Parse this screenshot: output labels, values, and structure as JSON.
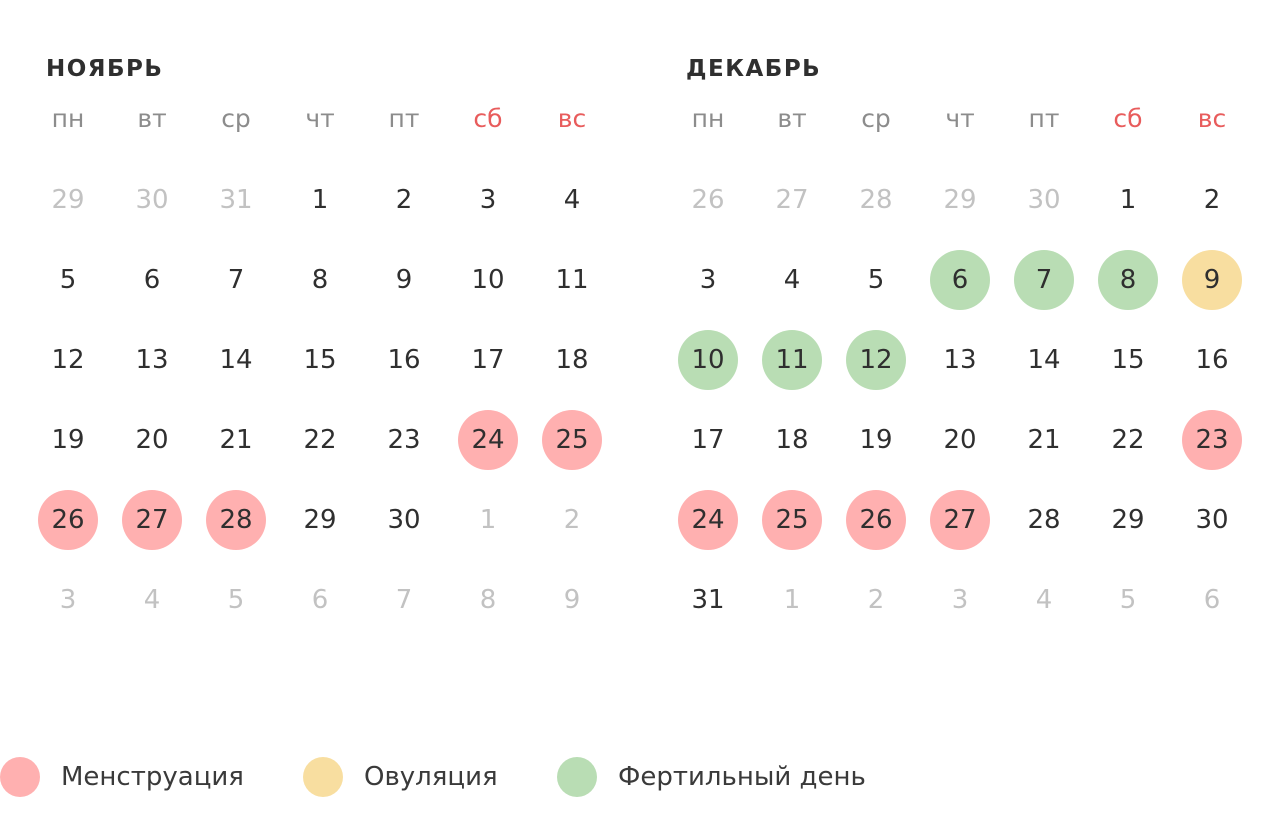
{
  "colors": {
    "menstruation": "#ffb0b0",
    "ovulation": "#f8dea0",
    "fertile": "#b9ddb4",
    "weekend_text": "#e85c5c",
    "weekday_text": "#8c8c8c",
    "other_month_text": "#c2c2c2",
    "day_text": "#2f2f2f"
  },
  "weekdays": [
    {
      "label": "пн",
      "weekend": false
    },
    {
      "label": "вт",
      "weekend": false
    },
    {
      "label": "ср",
      "weekend": false
    },
    {
      "label": "чт",
      "weekend": false
    },
    {
      "label": "пт",
      "weekend": false
    },
    {
      "label": "сб",
      "weekend": true
    },
    {
      "label": "вс",
      "weekend": true
    }
  ],
  "months": [
    {
      "key": "nov",
      "title": "НОЯБРЬ",
      "weeks": [
        [
          {
            "d": "29",
            "o": true
          },
          {
            "d": "30",
            "o": true
          },
          {
            "d": "31",
            "o": true
          },
          {
            "d": "1"
          },
          {
            "d": "2"
          },
          {
            "d": "3"
          },
          {
            "d": "4"
          }
        ],
        [
          {
            "d": "5"
          },
          {
            "d": "6"
          },
          {
            "d": "7"
          },
          {
            "d": "8"
          },
          {
            "d": "9"
          },
          {
            "d": "10"
          },
          {
            "d": "11"
          }
        ],
        [
          {
            "d": "12"
          },
          {
            "d": "13"
          },
          {
            "d": "14"
          },
          {
            "d": "15"
          },
          {
            "d": "16"
          },
          {
            "d": "17"
          },
          {
            "d": "18"
          }
        ],
        [
          {
            "d": "19"
          },
          {
            "d": "20"
          },
          {
            "d": "21"
          },
          {
            "d": "22"
          },
          {
            "d": "23"
          },
          {
            "d": "24",
            "t": "menstruation"
          },
          {
            "d": "25",
            "t": "menstruation"
          }
        ],
        [
          {
            "d": "26",
            "t": "menstruation"
          },
          {
            "d": "27",
            "t": "menstruation"
          },
          {
            "d": "28",
            "t": "menstruation"
          },
          {
            "d": "29"
          },
          {
            "d": "30"
          },
          {
            "d": "1",
            "o": true
          },
          {
            "d": "2",
            "o": true
          }
        ],
        [
          {
            "d": "3",
            "o": true
          },
          {
            "d": "4",
            "o": true
          },
          {
            "d": "5",
            "o": true
          },
          {
            "d": "6",
            "o": true
          },
          {
            "d": "7",
            "o": true
          },
          {
            "d": "8",
            "o": true
          },
          {
            "d": "9",
            "o": true
          }
        ]
      ]
    },
    {
      "key": "dec",
      "title": "ДЕКАБРЬ",
      "weeks": [
        [
          {
            "d": "26",
            "o": true
          },
          {
            "d": "27",
            "o": true
          },
          {
            "d": "28",
            "o": true
          },
          {
            "d": "29",
            "o": true
          },
          {
            "d": "30",
            "o": true
          },
          {
            "d": "1"
          },
          {
            "d": "2"
          }
        ],
        [
          {
            "d": "3"
          },
          {
            "d": "4"
          },
          {
            "d": "5"
          },
          {
            "d": "6",
            "t": "fertile"
          },
          {
            "d": "7",
            "t": "fertile"
          },
          {
            "d": "8",
            "t": "fertile"
          },
          {
            "d": "9",
            "t": "ovulation"
          }
        ],
        [
          {
            "d": "10",
            "t": "fertile"
          },
          {
            "d": "11",
            "t": "fertile"
          },
          {
            "d": "12",
            "t": "fertile"
          },
          {
            "d": "13"
          },
          {
            "d": "14"
          },
          {
            "d": "15"
          },
          {
            "d": "16"
          }
        ],
        [
          {
            "d": "17"
          },
          {
            "d": "18"
          },
          {
            "d": "19"
          },
          {
            "d": "20"
          },
          {
            "d": "21"
          },
          {
            "d": "22"
          },
          {
            "d": "23",
            "t": "menstruation"
          }
        ],
        [
          {
            "d": "24",
            "t": "menstruation"
          },
          {
            "d": "25",
            "t": "menstruation"
          },
          {
            "d": "26",
            "t": "menstruation"
          },
          {
            "d": "27",
            "t": "menstruation"
          },
          {
            "d": "28"
          },
          {
            "d": "29"
          },
          {
            "d": "30"
          }
        ],
        [
          {
            "d": "31"
          },
          {
            "d": "1",
            "o": true
          },
          {
            "d": "2",
            "o": true
          },
          {
            "d": "3",
            "o": true
          },
          {
            "d": "4",
            "o": true
          },
          {
            "d": "5",
            "o": true
          },
          {
            "d": "6",
            "o": true
          }
        ]
      ]
    }
  ],
  "legend": [
    {
      "key": "menstruation",
      "label": "Менструация",
      "color": "#ffb0b0"
    },
    {
      "key": "ovulation",
      "label": "Овуляция",
      "color": "#f8dea0"
    },
    {
      "key": "fertile",
      "label": "Фертильный день",
      "color": "#b9ddb4"
    }
  ]
}
